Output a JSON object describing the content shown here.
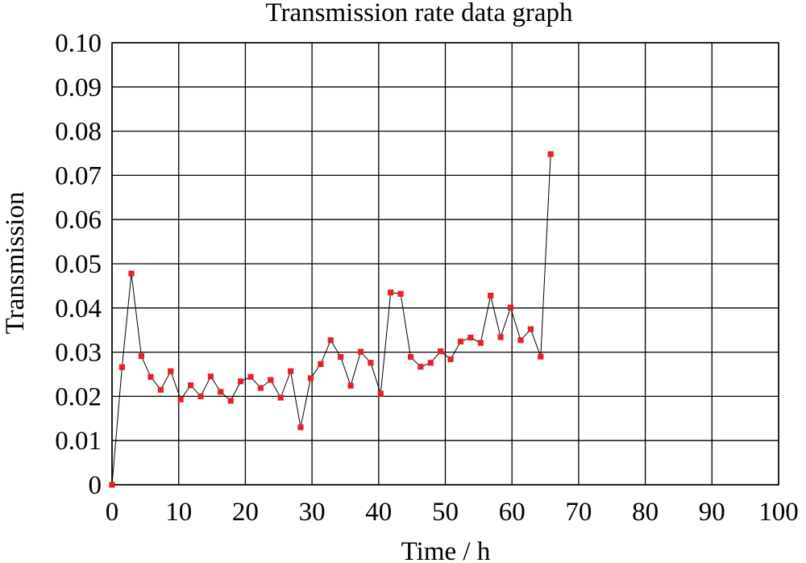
{
  "chart_data": {
    "type": "line",
    "title": "Transmission rate data graph",
    "xlabel": "Time / h",
    "ylabel": "Transmission",
    "xlim": [
      0,
      100
    ],
    "ylim": [
      0,
      0.1
    ],
    "grid": true,
    "x_ticks": [
      "0",
      "10",
      "20",
      "30",
      "40",
      "50",
      "60",
      "70",
      "80",
      "90",
      "100"
    ],
    "y_ticks": [
      "0",
      "0.01",
      "0.02",
      "0.03",
      "0.04",
      "0.05",
      "0.06",
      "0.07",
      "0.08",
      "0.09",
      "0.10"
    ],
    "x_tick_values": [
      0,
      10,
      20,
      30,
      40,
      50,
      60,
      70,
      80,
      90,
      100
    ],
    "y_tick_values": [
      0,
      0.01,
      0.02,
      0.03,
      0.04,
      0.05,
      0.06,
      0.07,
      0.08,
      0.09,
      0.1
    ],
    "marker_color": "#e8202a",
    "line_color": "#000000",
    "series": [
      {
        "x": [
          0,
          1.5,
          2.9,
          4.4,
          5.8,
          7.3,
          8.8,
          10.3,
          11.8,
          13.3,
          14.8,
          16.3,
          17.8,
          19.3,
          20.8,
          22.3,
          23.8,
          25.3,
          26.8,
          28.3,
          29.8,
          31.3,
          32.8,
          34.3,
          35.8,
          37.3,
          38.8,
          40.3,
          41.8,
          43.3,
          44.8,
          46.3,
          47.8,
          49.3,
          50.8,
          52.3,
          53.8,
          55.3,
          56.8,
          58.3,
          59.8,
          61.3,
          62.8,
          64.3,
          65.8
        ],
        "y": [
          0,
          0.0266,
          0.0478,
          0.0291,
          0.0244,
          0.0215,
          0.0257,
          0.0193,
          0.0225,
          0.02,
          0.0245,
          0.021,
          0.019,
          0.0234,
          0.0244,
          0.0219,
          0.0237,
          0.0197,
          0.0257,
          0.013,
          0.0241,
          0.0273,
          0.0327,
          0.0289,
          0.0224,
          0.0301,
          0.0276,
          0.0206,
          0.0435,
          0.0432,
          0.0289,
          0.0267,
          0.0276,
          0.0302,
          0.0284,
          0.0324,
          0.0333,
          0.0321,
          0.0428,
          0.0334,
          0.0401,
          0.0327,
          0.0352,
          0.029,
          0.0748
        ]
      }
    ]
  }
}
